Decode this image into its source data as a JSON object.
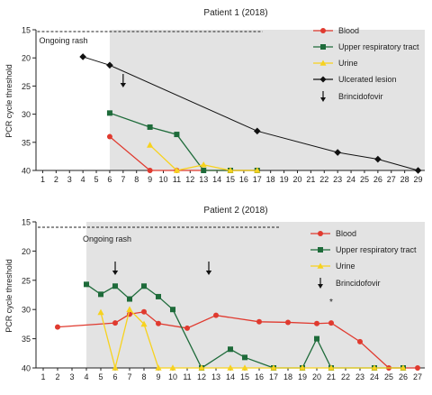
{
  "colors": {
    "blood": "#e03a2f",
    "upper_respiratory_tract": "#1e6b3a",
    "urine": "#f7d21e",
    "ulcerated_lesion": "#111111",
    "shade": "#e3e3e3"
  },
  "chart_data": [
    {
      "type": "line",
      "title": "Patient 1 (2018)",
      "ylabel": "PCR cycle threshold",
      "xlabel": "",
      "ylim": [
        40,
        15
      ],
      "y_inverted": true,
      "yticks": [
        15,
        20,
        25,
        30,
        35,
        40
      ],
      "x": [
        1,
        2,
        3,
        4,
        5,
        6,
        7,
        8,
        9,
        10,
        11,
        12,
        13,
        14,
        15,
        16,
        17,
        18,
        19,
        20,
        21,
        22,
        23,
        24,
        25,
        26,
        27,
        28,
        29
      ],
      "xlim": [
        0.5,
        29.5
      ],
      "shaded_from_x": 6,
      "rash_label": "Ongoing rash",
      "rash_x": [
        1,
        17
      ],
      "rash_label_x": 1,
      "arrows_x": [
        7
      ],
      "legend_position": "top-right",
      "legend": [
        {
          "key": "blood",
          "label": "Blood",
          "marker": "circle"
        },
        {
          "key": "upper_respiratory_tract",
          "label": "Upper respiratory tract",
          "marker": "square"
        },
        {
          "key": "urine",
          "label": "Urine",
          "marker": "triangle"
        },
        {
          "key": "ulcerated_lesion",
          "label": "Ulcerated lesion",
          "marker": "diamond"
        },
        {
          "key": "arrow",
          "label": "Brincidofovir",
          "marker": "arrow"
        }
      ],
      "series": [
        {
          "key": "blood",
          "name": "Blood",
          "marker": "circle",
          "points": [
            [
              6,
              34
            ],
            [
              9,
              40
            ],
            [
              11,
              40
            ],
            [
              13,
              40
            ],
            [
              15,
              40
            ],
            [
              17,
              40
            ]
          ]
        },
        {
          "key": "upper_respiratory_tract",
          "name": "Upper respiratory tract",
          "marker": "square",
          "points": [
            [
              6,
              29.8
            ],
            [
              9,
              32.3
            ],
            [
              11,
              33.6
            ],
            [
              13,
              40
            ],
            [
              15,
              40
            ],
            [
              17,
              40
            ]
          ]
        },
        {
          "key": "urine",
          "name": "Urine",
          "marker": "triangle",
          "points": [
            [
              9,
              35.5
            ],
            [
              11,
              40
            ],
            [
              13,
              39
            ],
            [
              15,
              40
            ],
            [
              17,
              40
            ]
          ]
        },
        {
          "key": "ulcerated_lesion",
          "name": "Ulcerated lesion",
          "marker": "diamond",
          "points": [
            [
              4,
              19.8
            ],
            [
              6,
              21.3
            ],
            [
              17,
              33
            ],
            [
              23,
              36.8
            ],
            [
              26,
              38
            ],
            [
              29,
              40
            ]
          ]
        }
      ]
    },
    {
      "type": "line",
      "title": "Patient 2 (2018)",
      "ylabel": "PCR cycle threshold",
      "xlabel": "",
      "ylim": [
        40,
        15
      ],
      "y_inverted": true,
      "yticks": [
        15,
        20,
        25,
        30,
        35,
        40
      ],
      "x": [
        1,
        2,
        3,
        4,
        5,
        6,
        7,
        8,
        9,
        10,
        11,
        12,
        13,
        14,
        15,
        16,
        17,
        18,
        19,
        20,
        21,
        22,
        23,
        24,
        25,
        26,
        27
      ],
      "xlim": [
        0.5,
        27.5
      ],
      "shaded_from_x": 4,
      "rash_label": "Ongoing rash",
      "rash_x": [
        1,
        17
      ],
      "rash_label_x": 4,
      "arrows_x": [
        6,
        12.5
      ],
      "star_label": "*",
      "star_x": 21,
      "legend_position": "top-right",
      "legend": [
        {
          "key": "blood",
          "label": "Blood",
          "marker": "circle"
        },
        {
          "key": "upper_respiratory_tract",
          "label": "Upper respiratory tract",
          "marker": "square"
        },
        {
          "key": "urine",
          "label": "Urine",
          "marker": "triangle"
        },
        {
          "key": "arrow",
          "label": "Brincidofovir",
          "marker": "arrow"
        }
      ],
      "series": [
        {
          "key": "blood",
          "name": "Blood",
          "marker": "circle",
          "points": [
            [
              2,
              33
            ],
            [
              6,
              32.3
            ],
            [
              7,
              30.8
            ],
            [
              8,
              30.4
            ],
            [
              9,
              32.4
            ],
            [
              11,
              33.2
            ],
            [
              13,
              31
            ],
            [
              16,
              32.1
            ],
            [
              18,
              32.2
            ],
            [
              20,
              32.4
            ],
            [
              21,
              32.3
            ],
            [
              23,
              35.5
            ],
            [
              25,
              40
            ],
            [
              27,
              40
            ]
          ]
        },
        {
          "key": "upper_respiratory_tract",
          "name": "Upper respiratory tract",
          "marker": "square",
          "points": [
            [
              4,
              25.7
            ],
            [
              5,
              27.4
            ],
            [
              6,
              26
            ],
            [
              7,
              28.2
            ],
            [
              8,
              26
            ],
            [
              9,
              27.8
            ],
            [
              10,
              30
            ],
            [
              12,
              40
            ],
            [
              14,
              36.8
            ],
            [
              15,
              38.2
            ],
            [
              17,
              40
            ],
            [
              19,
              40
            ],
            [
              20,
              35
            ],
            [
              21,
              40
            ],
            [
              24,
              40
            ],
            [
              26,
              40
            ]
          ]
        },
        {
          "key": "urine",
          "name": "Urine",
          "marker": "triangle",
          "points": [
            [
              5,
              30.5
            ],
            [
              6,
              40
            ],
            [
              7,
              30
            ],
            [
              8,
              32.5
            ],
            [
              9,
              40
            ],
            [
              10,
              40
            ],
            [
              12,
              40
            ],
            [
              14,
              40
            ],
            [
              15,
              40
            ],
            [
              17,
              40
            ],
            [
              19,
              40
            ],
            [
              21,
              40
            ],
            [
              24,
              40
            ],
            [
              26,
              40
            ]
          ]
        }
      ]
    }
  ]
}
